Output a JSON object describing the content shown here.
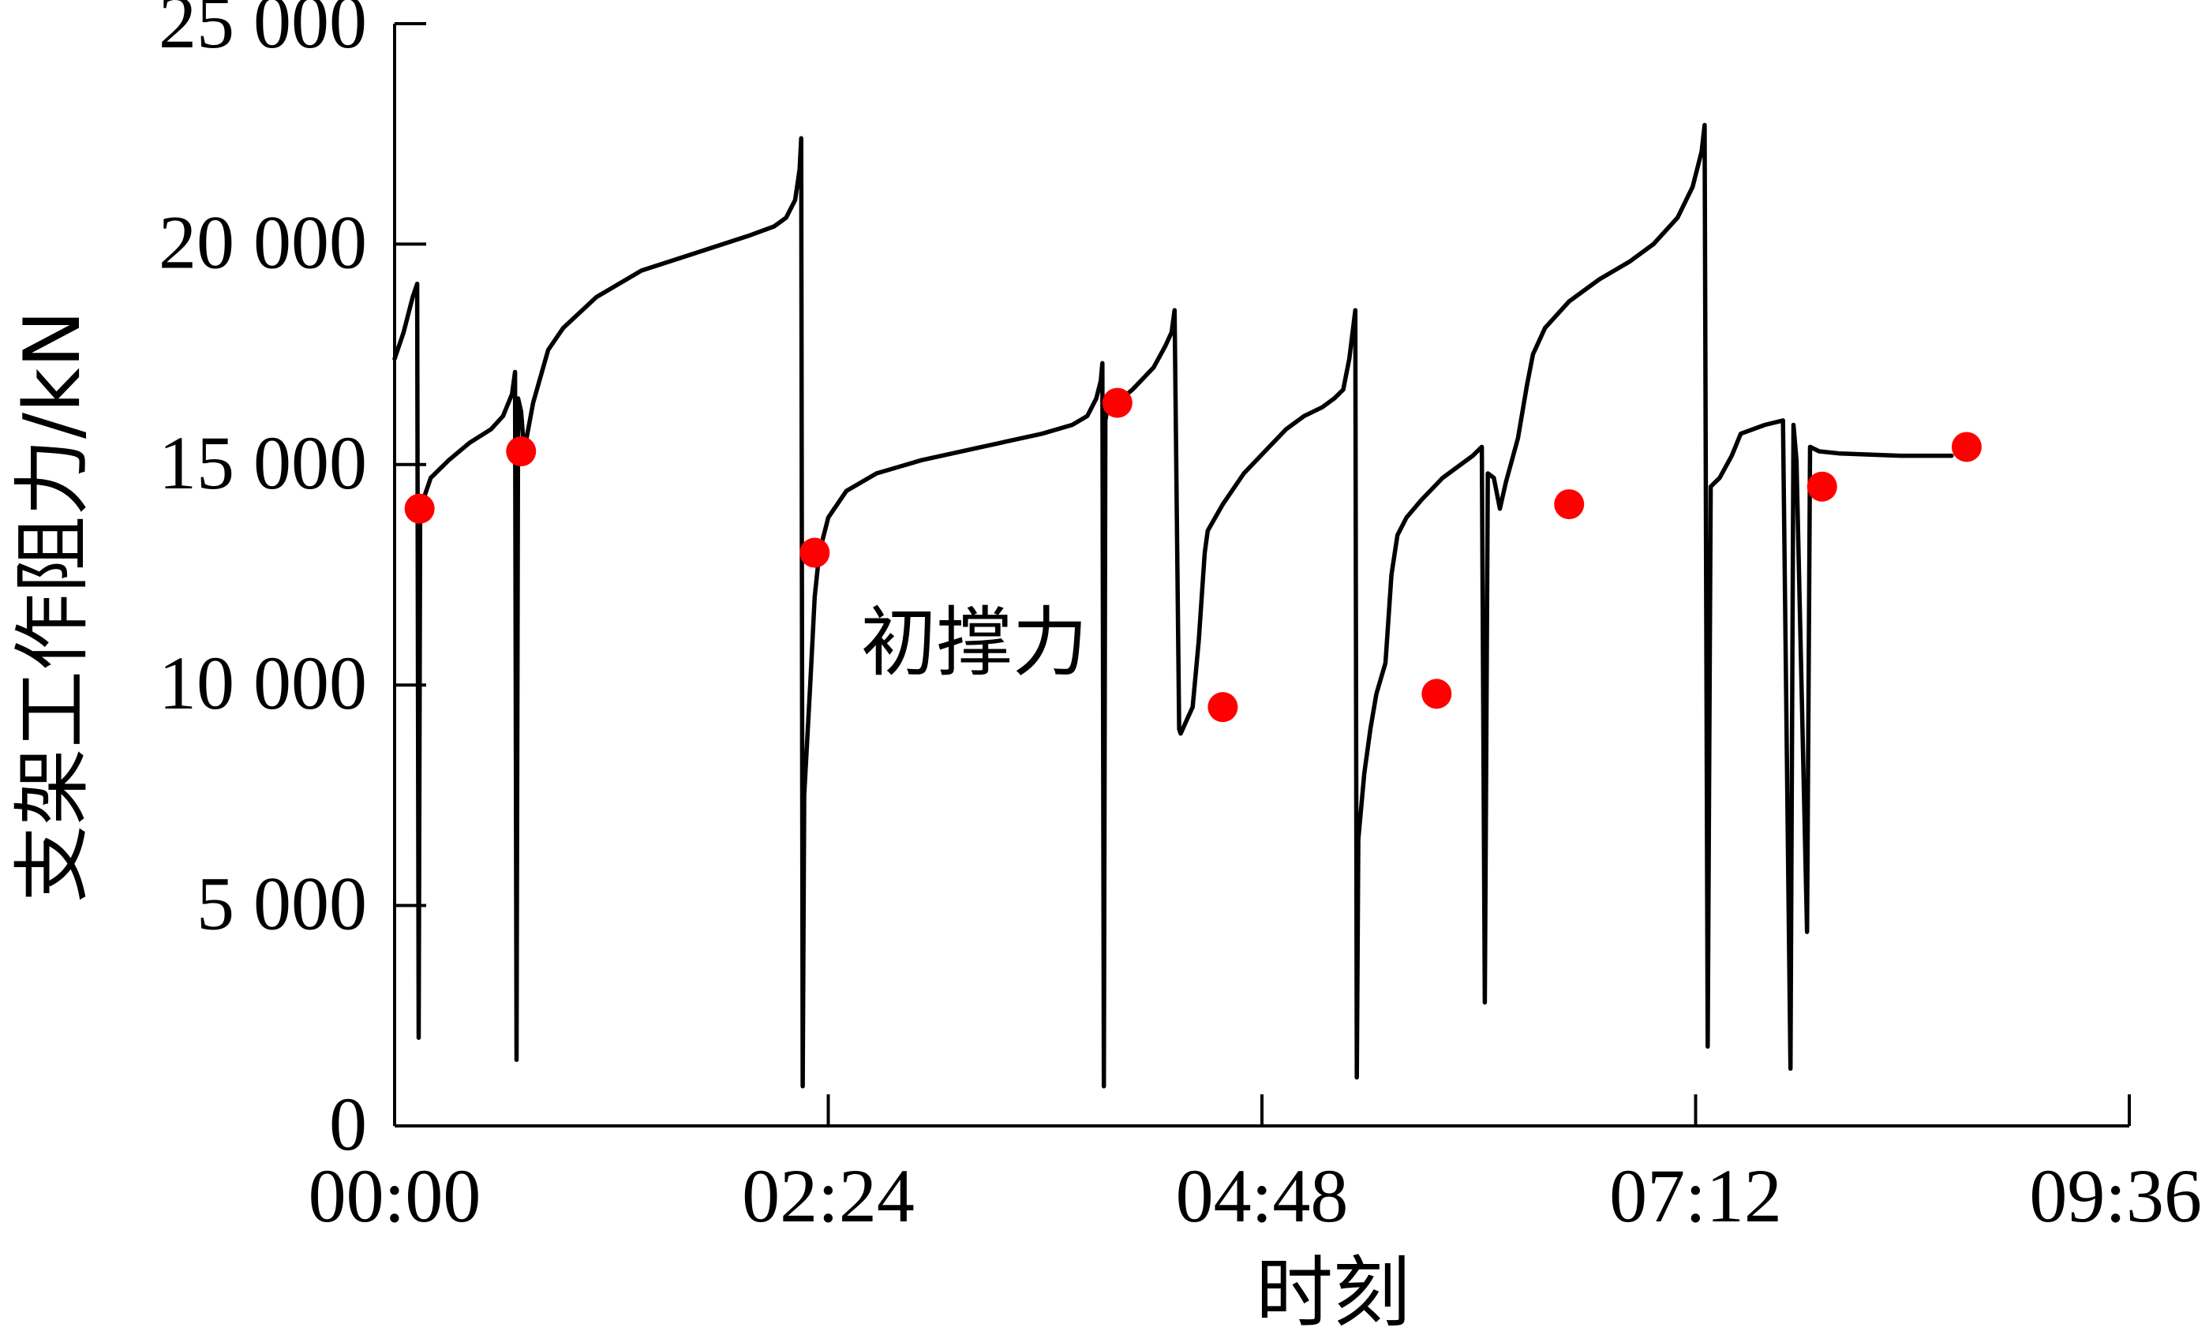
{
  "chart_data": {
    "type": "line",
    "title": "",
    "xlabel": "时刻",
    "ylabel": "支架工作阻力/kN",
    "x_unit": "minutes",
    "xlim": [
      0,
      576
    ],
    "ylim": [
      0,
      25000
    ],
    "x_tick_values": [
      0,
      144,
      288,
      432,
      576
    ],
    "x_tick_labels": [
      "00:00",
      "02:24",
      "04:48",
      "07:12",
      "09:36"
    ],
    "y_tick_values": [
      0,
      5000,
      10000,
      15000,
      20000,
      25000
    ],
    "y_tick_labels": [
      "0",
      "5 000",
      "10 000",
      "15 000",
      "20 000",
      "25 000"
    ],
    "grid": false,
    "legend": "none",
    "line_color": "#000000",
    "marker_color": "#ff0000",
    "series": [
      {
        "points": [
          [
            0,
            17400
          ],
          [
            3,
            18000
          ],
          [
            6,
            18800
          ],
          [
            7.5,
            19100
          ],
          [
            8,
            2000
          ],
          [
            8.5,
            14000
          ],
          [
            12,
            14700
          ],
          [
            18,
            15100
          ],
          [
            25,
            15500
          ],
          [
            32,
            15800
          ],
          [
            36,
            16100
          ],
          [
            39,
            16600
          ],
          [
            40,
            17100
          ],
          [
            40.5,
            1500
          ],
          [
            41,
            16500
          ],
          [
            42,
            16200
          ],
          [
            43,
            15300
          ],
          [
            46,
            16400
          ],
          [
            51,
            17600
          ],
          [
            56,
            18100
          ],
          [
            67,
            18800
          ],
          [
            82,
            19400
          ],
          [
            100,
            19800
          ],
          [
            118,
            20200
          ],
          [
            126,
            20400
          ],
          [
            130,
            20600
          ],
          [
            133,
            21000
          ],
          [
            134.5,
            21700
          ],
          [
            135,
            22400
          ],
          [
            135.5,
            900
          ],
          [
            136,
            7500
          ],
          [
            138,
            10000
          ],
          [
            139.5,
            12000
          ],
          [
            141,
            13000
          ],
          [
            144,
            13800
          ],
          [
            150,
            14400
          ],
          [
            160,
            14800
          ],
          [
            175,
            15100
          ],
          [
            195,
            15400
          ],
          [
            215,
            15700
          ],
          [
            225,
            15900
          ],
          [
            230,
            16100
          ],
          [
            233,
            16500
          ],
          [
            234.5,
            16900
          ],
          [
            235,
            17300
          ],
          [
            235.5,
            900
          ],
          [
            236,
            16000
          ],
          [
            237,
            16400
          ],
          [
            238,
            16300
          ],
          [
            245,
            16700
          ],
          [
            252,
            17200
          ],
          [
            256,
            17700
          ],
          [
            258,
            18000
          ],
          [
            259,
            18500
          ],
          [
            260.5,
            9000
          ],
          [
            261,
            8900
          ],
          [
            263,
            9200
          ],
          [
            265,
            9500
          ],
          [
            267,
            11000
          ],
          [
            268,
            12000
          ],
          [
            269,
            13000
          ],
          [
            270,
            13500
          ],
          [
            275,
            14100
          ],
          [
            282,
            14800
          ],
          [
            289,
            15300
          ],
          [
            296,
            15800
          ],
          [
            302,
            16100
          ],
          [
            308,
            16300
          ],
          [
            312,
            16500
          ],
          [
            315,
            16700
          ],
          [
            317,
            17400
          ],
          [
            319,
            18500
          ],
          [
            319.5,
            1100
          ],
          [
            320,
            6500
          ],
          [
            322,
            8000
          ],
          [
            324,
            9000
          ],
          [
            326,
            9800
          ],
          [
            329,
            10500
          ],
          [
            330,
            11500
          ],
          [
            331,
            12500
          ],
          [
            333,
            13400
          ],
          [
            336,
            13800
          ],
          [
            341,
            14200
          ],
          [
            348,
            14700
          ],
          [
            358,
            15200
          ],
          [
            361,
            15400
          ],
          [
            362,
            2800
          ],
          [
            363,
            14800
          ],
          [
            365,
            14700
          ],
          [
            367,
            14000
          ],
          [
            369,
            14600
          ],
          [
            373,
            15600
          ],
          [
            376,
            16800
          ],
          [
            378,
            17500
          ],
          [
            382,
            18100
          ],
          [
            390,
            18700
          ],
          [
            400,
            19200
          ],
          [
            410,
            19600
          ],
          [
            418,
            20000
          ],
          [
            426,
            20600
          ],
          [
            431,
            21300
          ],
          [
            434,
            22100
          ],
          [
            435,
            22700
          ],
          [
            436,
            1800
          ],
          [
            437,
            14500
          ],
          [
            440,
            14700
          ],
          [
            444,
            15200
          ],
          [
            447,
            15700
          ],
          [
            455,
            15900
          ],
          [
            461,
            16000
          ],
          [
            463.5,
            1300
          ],
          [
            464.5,
            15900
          ],
          [
            465.5,
            15100
          ],
          [
            469,
            4400
          ],
          [
            470,
            15400
          ],
          [
            473,
            15300
          ],
          [
            480,
            15250
          ],
          [
            500,
            15200
          ],
          [
            517,
            15200
          ]
        ]
      }
    ],
    "markers": [
      [
        8.3,
        14000
      ],
      [
        42,
        15300
      ],
      [
        139.5,
        13000
      ],
      [
        240,
        16400
      ],
      [
        275,
        9500
      ],
      [
        346,
        9800
      ],
      [
        390,
        14100
      ],
      [
        474,
        14500
      ],
      [
        522,
        15400
      ]
    ],
    "annotations": [
      {
        "text": "初撑力",
        "x": 143,
        "y": 11000
      }
    ]
  }
}
